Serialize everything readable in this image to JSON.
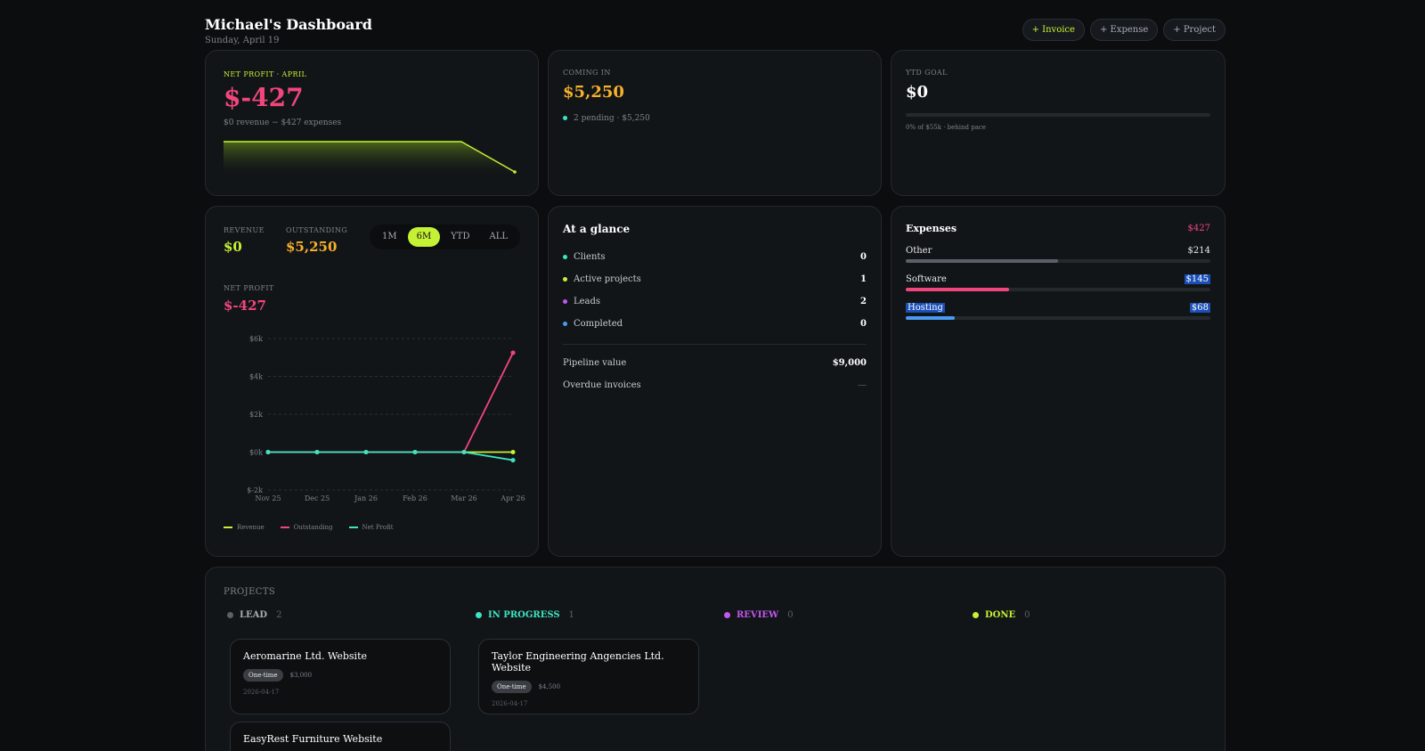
{
  "header": {
    "title": "Michael's Dashboard",
    "date": "Sunday, April 19",
    "actions": [
      {
        "label": "+ Invoice"
      },
      {
        "label": "+ Expense"
      },
      {
        "label": "+ Project"
      }
    ]
  },
  "net_profit_card": {
    "label": "NET PROFIT · APRIL",
    "value": "$-427",
    "sub": "$0 revenue − $427 expenses"
  },
  "coming_in": {
    "label": "COMING IN",
    "value": "$5,250",
    "detail": "2 pending · $5,250"
  },
  "ytd_goal": {
    "label": "YTD GOAL",
    "value": "$0",
    "progress": 0,
    "detail": "0% of $55k · behind pace"
  },
  "trend": {
    "revenue_label": "REVENUE",
    "revenue_value": "$0",
    "outstanding_label": "OUTSTANDING",
    "outstanding_value": "$5,250",
    "net_label": "NET PROFIT",
    "net_value": "$-427",
    "ranges": [
      "1M",
      "6M",
      "YTD",
      "ALL"
    ],
    "active_range": "6M"
  },
  "chart_data": {
    "type": "line",
    "x": [
      "Nov 25",
      "Dec 25",
      "Jan 26",
      "Feb 26",
      "Mar 26",
      "Apr 26"
    ],
    "y_ticks": [
      "$6k",
      "$4k",
      "$2k",
      "$0k",
      "$-2k"
    ],
    "ylim": [
      -2000,
      6000
    ],
    "grid": true,
    "legend_position": "bottom-left",
    "series": [
      {
        "name": "Revenue",
        "color": "#c5f135",
        "values": [
          0,
          0,
          0,
          0,
          0,
          0
        ]
      },
      {
        "name": "Outstanding",
        "color": "#f1467c",
        "values": [
          0,
          0,
          0,
          0,
          0,
          5250
        ]
      },
      {
        "name": "Net Profit",
        "color": "#3de3c2",
        "values": [
          0,
          0,
          0,
          0,
          0,
          -427
        ]
      }
    ]
  },
  "glance": {
    "title": "At a glance",
    "items": [
      {
        "label": "Clients",
        "value": "0",
        "color": "#3de3c2"
      },
      {
        "label": "Active projects",
        "value": "1",
        "color": "#c5f135"
      },
      {
        "label": "Leads",
        "value": "2",
        "color": "#c356f0"
      },
      {
        "label": "Completed",
        "value": "0",
        "color": "#4b9af0"
      }
    ],
    "pipeline_label": "Pipeline value",
    "pipeline_value": "$9,000",
    "overdue_label": "Overdue invoices",
    "overdue_value": "—"
  },
  "expenses": {
    "title": "Expenses",
    "total": "$427",
    "items": [
      {
        "label": "Other",
        "value": "$214",
        "fraction": 0.5,
        "color": "#5b6168"
      },
      {
        "label": "Software",
        "value": "$145",
        "fraction": 0.34,
        "color": "#f1467c"
      },
      {
        "label": "Hosting",
        "value": "$68",
        "fraction": 0.16,
        "color": "#4b9af0"
      }
    ]
  },
  "projects": {
    "title": "PROJECTS",
    "columns": [
      {
        "label": "LEAD",
        "count": "2",
        "color": "#5b6168"
      },
      {
        "label": "IN PROGRESS",
        "count": "1",
        "color": "#3de3c2"
      },
      {
        "label": "REVIEW",
        "count": "0",
        "color": "#c356f0"
      },
      {
        "label": "DONE",
        "count": "0",
        "color": "#c5f135"
      }
    ],
    "cards": [
      {
        "title": "Aeromarine Ltd. Website",
        "tag": "One-time",
        "price": "$3,000",
        "date": "2026-04-17"
      },
      {
        "title": "Taylor Engineering Angencies Ltd. Website",
        "tag": "One-time",
        "price": "$4,500",
        "date": "2026-04-17"
      },
      {
        "title": "EasyRest Furniture Website"
      }
    ]
  }
}
